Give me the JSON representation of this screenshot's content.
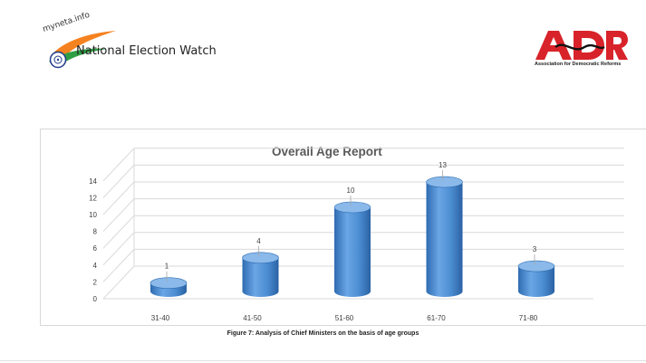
{
  "header": {
    "left_logo_text": "myneta.info",
    "left_title": "National Election Watch",
    "right_logo_text": "ADR",
    "right_subtitle": "Association for Democratic Reforms"
  },
  "caption": "Figure 7:  Analysis of Chief Ministers on the basis of age groups",
  "colors": {
    "bar": "#4a8bd0",
    "bar_dark": "#2e6bb0",
    "bar_light": "#8ab9ea",
    "grid": "#d9d9d9",
    "adr_red": "#d8232a"
  },
  "chart_data": {
    "type": "bar",
    "title": "Overall Age Report",
    "categories": [
      "31-40",
      "41-50",
      "51-60",
      "61-70",
      "71-80"
    ],
    "values": [
      1,
      4,
      10,
      13,
      3
    ],
    "ylim": [
      0,
      14
    ],
    "yticks": [
      0,
      2,
      4,
      6,
      8,
      10,
      12,
      14
    ],
    "xlabel": "",
    "ylabel": "",
    "grid": true,
    "legend": "none",
    "style": "3d-cylinder"
  }
}
